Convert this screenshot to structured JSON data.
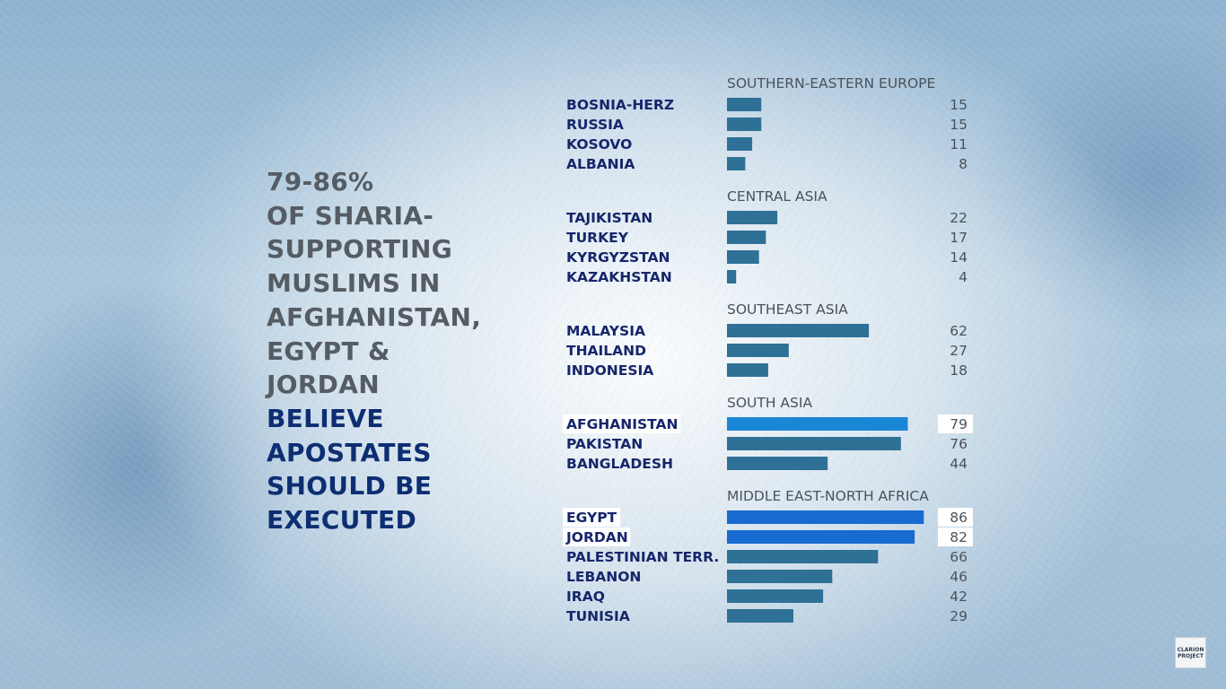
{
  "headline": {
    "lines_gray": [
      "79-86%",
      "OF SHARIA-",
      "SUPPORTING",
      "MUSLIMS IN",
      "AFGHANISTAN,",
      "EGYPT &",
      "JORDAN"
    ],
    "lines_navy": [
      "BELIEVE",
      "APOSTATES",
      "SHOULD BE",
      "EXECUTED"
    ]
  },
  "colors": {
    "bar": "#2f7096",
    "bar_highlight": "#1a86d6",
    "bar_highlight_deep": "#176bd1",
    "label": "#16266b",
    "group_title": "#4a535b",
    "value": "#4a535b",
    "highlight_box": "#ffffff"
  },
  "chart_data": {
    "type": "bar",
    "orientation": "horizontal",
    "xlim": [
      0,
      100
    ],
    "groups": [
      {
        "title": "SOUTHERN-EASTERN EUROPE",
        "categories": [
          "BOSNIA-HERZ",
          "RUSSIA",
          "KOSOVO",
          "ALBANIA"
        ],
        "values": [
          15,
          15,
          11,
          8
        ],
        "highlighted": [
          false,
          false,
          false,
          false
        ]
      },
      {
        "title": "CENTRAL ASIA",
        "categories": [
          "TAJIKISTAN",
          "TURKEY",
          "KYRGYZSTAN",
          "KAZAKHSTAN"
        ],
        "values": [
          22,
          17,
          14,
          4
        ],
        "highlighted": [
          false,
          false,
          false,
          false
        ]
      },
      {
        "title": "SOUTHEAST ASIA",
        "categories": [
          "MALAYSIA",
          "THAILAND",
          "INDONESIA"
        ],
        "values": [
          62,
          27,
          18
        ],
        "highlighted": [
          false,
          false,
          false
        ]
      },
      {
        "title": "SOUTH ASIA",
        "categories": [
          "AFGHANISTAN",
          "PAKISTAN",
          "BANGLADESH"
        ],
        "values": [
          79,
          76,
          44
        ],
        "highlighted": [
          true,
          false,
          false
        ]
      },
      {
        "title": "MIDDLE EAST-NORTH AFRICA",
        "categories": [
          "EGYPT",
          "JORDAN",
          "PALESTINIAN TERR.",
          "LEBANON",
          "IRAQ",
          "TUNISIA"
        ],
        "values": [
          86,
          82,
          66,
          46,
          42,
          29
        ],
        "highlighted": [
          true,
          true,
          false,
          false,
          false,
          false
        ]
      }
    ]
  },
  "logo": {
    "line1": "CLARION",
    "line2": "PROJECT"
  }
}
